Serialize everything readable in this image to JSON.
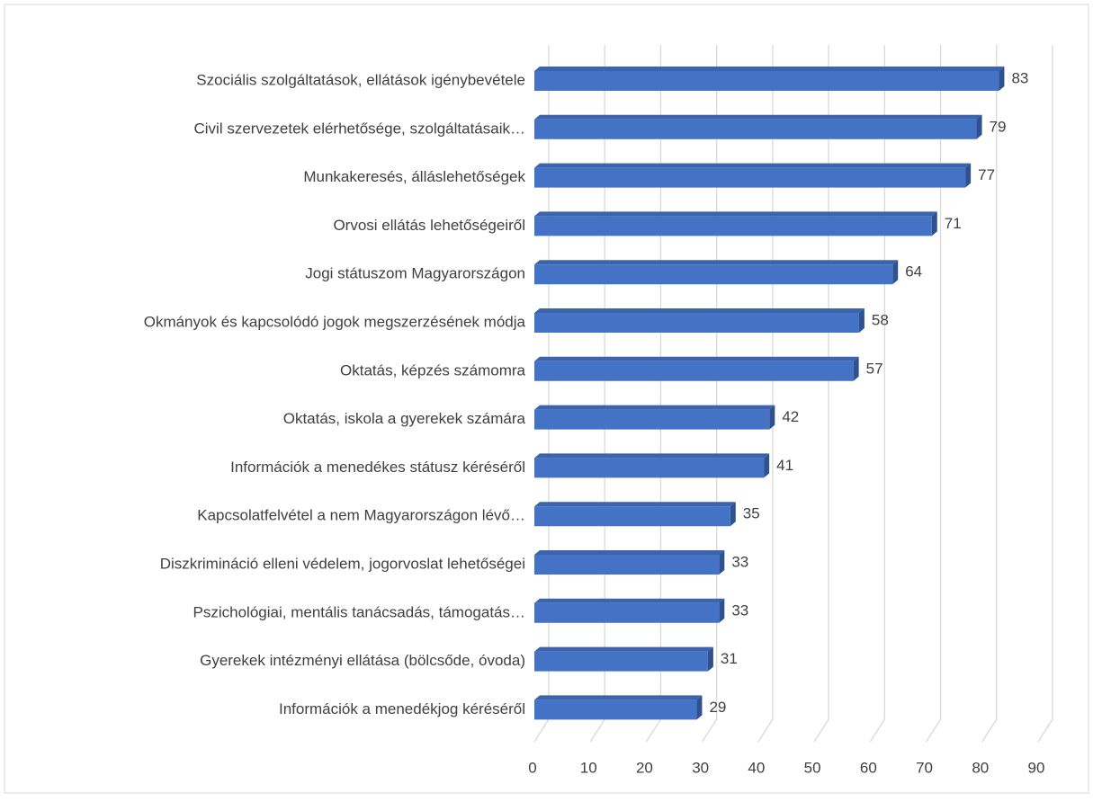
{
  "chart_data": {
    "type": "bar3d_horizontal",
    "categories": [
      "Szociális szolgáltatások, ellátások igénybevétele",
      "Civil szervezetek elérhetősége, szolgáltatásaik…",
      "Munkakeresés, álláslehetőségek",
      "Orvosi ellátás lehetőségeiről",
      "Jogi státuszom Magyarországon",
      "Okmányok és kapcsolódó jogok megszerzésének módja",
      "Oktatás, képzés számomra",
      "Oktatás, iskola a gyerekek számára",
      "Információk a menedékes státusz kéréséről",
      "Kapcsolatfelvétel a nem Magyarországon lévő…",
      "Diszkrimináció elleni védelem, jogorvoslat lehetőségei",
      "Pszichológiai, mentális tanácsadás, támogatás…",
      "Gyerekek intézményi ellátása (bölcsőde, óvoda)",
      "Információk a menedékjog kéréséről"
    ],
    "values": [
      83,
      79,
      77,
      71,
      64,
      58,
      57,
      42,
      41,
      35,
      33,
      33,
      31,
      29
    ],
    "color": "#4472c4",
    "xlim": [
      0,
      90
    ],
    "xticks": [
      0,
      10,
      20,
      30,
      40,
      50,
      60,
      70,
      80,
      90
    ],
    "grid": true
  }
}
